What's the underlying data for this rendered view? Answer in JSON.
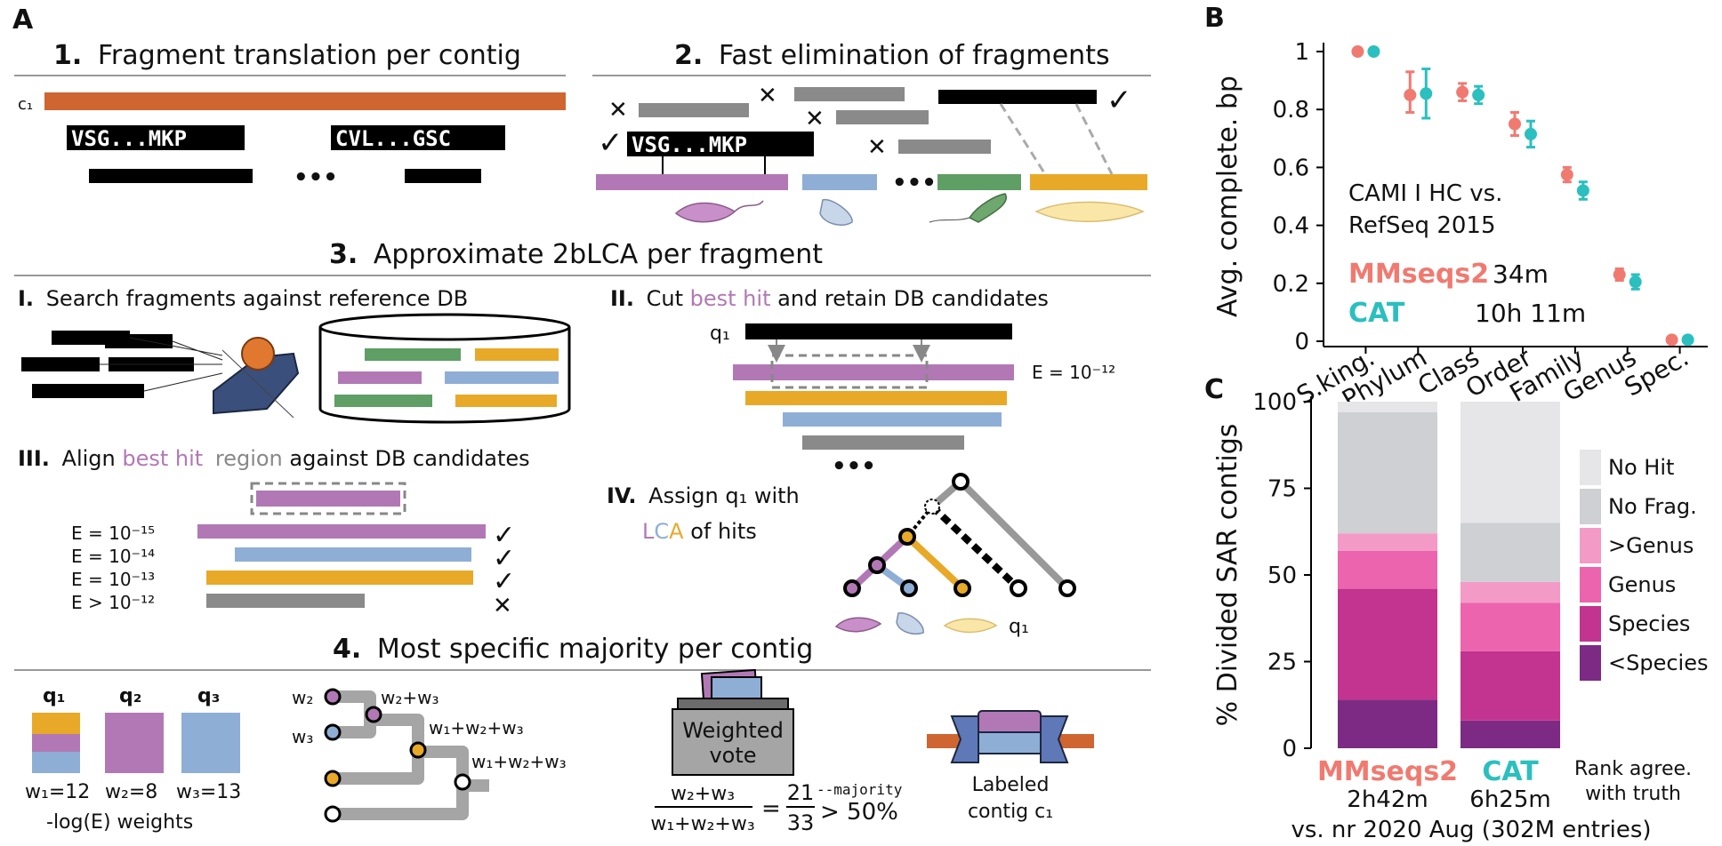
{
  "figure": {
    "panel_a": {
      "letter": "A",
      "step1": {
        "num": "1.",
        "title": "Fragment translation per contig",
        "contig": "c₁",
        "seq1": "VSG...MKP",
        "seq2": "CVL...GSC",
        "dots": "•••"
      },
      "step2": {
        "num": "2.",
        "title": "Fast elimination of fragments",
        "seq": "VSG...MKP",
        "check": "✓",
        "cross": "✕",
        "dots": "•••"
      },
      "step3": {
        "num": "3.",
        "title": "Approximate 2bLCA per fragment",
        "sub1": {
          "num": "I.",
          "text": "Search fragments against reference DB"
        },
        "sub2": {
          "num": "II.",
          "pre": "Cut ",
          "hl": "best hit",
          "post": " and retain DB candidates",
          "q": "q₁",
          "evalue": "E = 10⁻¹²",
          "dots": "•••"
        },
        "sub3": {
          "num": "III.",
          "pre": "Align ",
          "hl1": "best hit",
          "hl2": "region",
          "post": " against DB candidates",
          "evalues": [
            "E = 10⁻¹⁵",
            "E = 10⁻¹⁴",
            "E = 10⁻¹³",
            "E > 10⁻¹²"
          ],
          "marks": [
            "✓",
            "✓",
            "✓",
            "✕"
          ]
        },
        "sub4": {
          "num": "IV.",
          "line1": "Assign q₁ with",
          "l": "L",
          "c": "C",
          "a": "A",
          "post": " of hits",
          "q": "q₁"
        }
      },
      "step4": {
        "num": "4.",
        "title": "Most specific majority per contig",
        "q_labels": [
          "q₁",
          "q₂",
          "q₃"
        ],
        "w_labels": [
          "w₁=12",
          "w₂=8",
          "w₃=13"
        ],
        "weights_caption": "-log(E) weights",
        "tree_labels": [
          "w₂",
          "w₃",
          "w₂+w₃",
          "w₁+w₂+w₃",
          "w₁+w₂+w₃"
        ],
        "vote_line1": "Weighted",
        "vote_line2": "vote",
        "frac_num": "w₂+w₃",
        "frac_den": "w₁+w₂+w₃",
        "eq": "=",
        "frac2_num": "21",
        "frac2_den": "33",
        "gt": "> 50%",
        "majority": "--majority",
        "labeled_line1": "Labeled",
        "labeled_line2": "contig c₁"
      }
    },
    "panel_b": {
      "letter": "B"
    },
    "panel_c": {
      "letter": "C"
    }
  },
  "chart_data": [
    {
      "type": "scatter",
      "panel": "B",
      "ylabel": "Avg. complete. bp",
      "categories": [
        "S.king.",
        "Phylum",
        "Class",
        "Order",
        "Family",
        "Genus",
        "Spec."
      ],
      "ylim": [
        0,
        1
      ],
      "yticks": [
        "0",
        "0.2",
        "0.4",
        "0.6",
        "0.8",
        "1"
      ],
      "annotation_line1": "CAMI I HC vs.",
      "annotation_line2": "RefSeq 2015",
      "series": [
        {
          "name": "MMseqs2",
          "time": "34m",
          "color": "#f07a70",
          "values": [
            1.0,
            0.85,
            0.86,
            0.75,
            0.575,
            0.23,
            0.005
          ],
          "err_low": [
            1.0,
            0.79,
            0.83,
            0.71,
            0.55,
            0.21,
            0.0
          ],
          "err_high": [
            1.0,
            0.93,
            0.89,
            0.79,
            0.6,
            0.25,
            0.01
          ]
        },
        {
          "name": "CAT",
          "time": "10h 11m",
          "color": "#2bbfbf",
          "values": [
            1.0,
            0.855,
            0.85,
            0.715,
            0.52,
            0.205,
            0.005
          ],
          "err_low": [
            1.0,
            0.77,
            0.82,
            0.67,
            0.49,
            0.18,
            0.0
          ],
          "err_high": [
            1.0,
            0.94,
            0.88,
            0.76,
            0.55,
            0.23,
            0.01
          ]
        }
      ]
    },
    {
      "type": "bar",
      "panel": "C",
      "stacked": true,
      "ylabel": "% Divided SAR contigs",
      "ylim": [
        0,
        100
      ],
      "yticks": [
        "0",
        "25",
        "50",
        "75",
        "100"
      ],
      "categories": [
        "MMseqs2",
        "CAT"
      ],
      "category_times": [
        "2h42m",
        "6h25m"
      ],
      "category_colors": [
        "#f07a70",
        "#2bbfbf"
      ],
      "footer": "vs. nr 2020 Aug (302M entries)",
      "legend_title_line1": "Rank agree.",
      "legend_title_line2": "with truth",
      "series": [
        {
          "name": "<Species",
          "color": "#7d2a85",
          "values": [
            14,
            8
          ]
        },
        {
          "name": "Species",
          "color": "#c2348f",
          "values": [
            32,
            20
          ]
        },
        {
          "name": "Genus",
          "color": "#ec64ad",
          "values": [
            11,
            14
          ]
        },
        {
          "name": ">Genus",
          "color": "#f39ac6",
          "values": [
            5,
            6
          ]
        },
        {
          "name": "No Frag.",
          "color": "#cfd0d3",
          "values": [
            35,
            17
          ]
        },
        {
          "name": "No Hit",
          "color": "#e6e6e8",
          "values": [
            3,
            35
          ]
        }
      ]
    }
  ]
}
